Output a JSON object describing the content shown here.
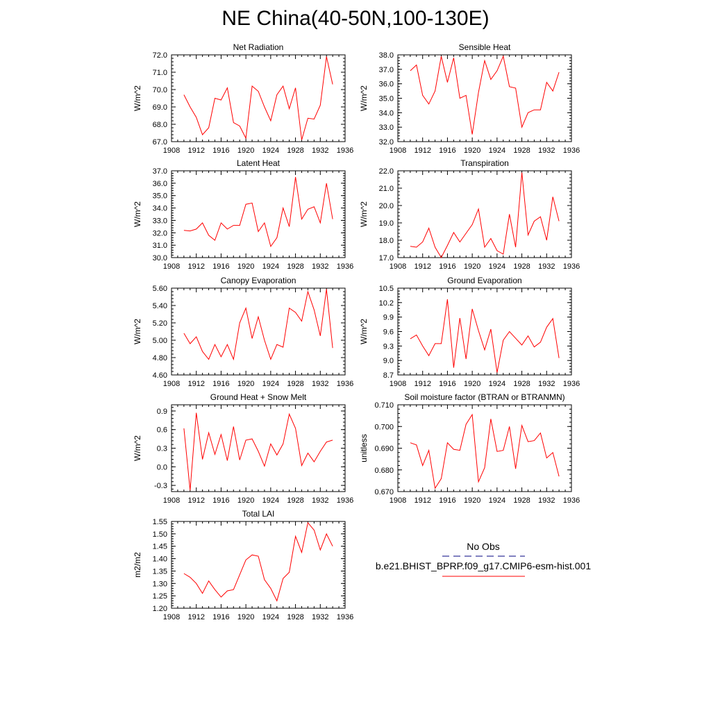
{
  "page": {
    "title": "NE China(40-50N,100-130E)"
  },
  "legend": {
    "obs_label": "No Obs",
    "model_label": "b.e21.BHIST_BPRP.f09_g17.CMIP6-esm-hist.001",
    "obs_color": "#000080",
    "model_color": "#ff0000"
  },
  "chart_data": [
    {
      "type": "line",
      "title": "Net Radiation",
      "xlabel": "",
      "ylabel": "W/m^2",
      "xlim": [
        1908,
        1936
      ],
      "ylim": [
        67.0,
        72.0
      ],
      "x_ticks": [
        1908,
        1912,
        1916,
        1920,
        1924,
        1928,
        1932,
        1936
      ],
      "y_ticks": [
        "67.0",
        "68.0",
        "69.0",
        "70.0",
        "71.0",
        "72.0"
      ],
      "series": [
        {
          "color": "#ff0000",
          "x": [
            1910,
            1911,
            1912,
            1913,
            1914,
            1915,
            1916,
            1917,
            1918,
            1919,
            1920,
            1921,
            1922,
            1923,
            1924,
            1925,
            1926,
            1927,
            1928,
            1929,
            1930,
            1931,
            1932,
            1933,
            1934
          ],
          "values": [
            69.7,
            69.0,
            68.4,
            67.4,
            67.8,
            69.5,
            69.4,
            70.1,
            68.1,
            67.9,
            67.2,
            70.2,
            69.9,
            69.0,
            68.2,
            69.7,
            70.2,
            68.9,
            70.1,
            67.1,
            68.35,
            68.3,
            69.1,
            71.9,
            70.3
          ]
        }
      ]
    },
    {
      "type": "line",
      "title": "Sensible Heat",
      "xlabel": "",
      "ylabel": "W/m^2",
      "xlim": [
        1908,
        1936
      ],
      "ylim": [
        32.0,
        38.0
      ],
      "x_ticks": [
        1908,
        1912,
        1916,
        1920,
        1924,
        1928,
        1932,
        1936
      ],
      "y_ticks": [
        "32.0",
        "33.0",
        "34.0",
        "35.0",
        "36.0",
        "37.0",
        "38.0"
      ],
      "series": [
        {
          "color": "#ff0000",
          "x": [
            1910,
            1911,
            1912,
            1913,
            1914,
            1915,
            1916,
            1917,
            1918,
            1919,
            1920,
            1921,
            1922,
            1923,
            1924,
            1925,
            1926,
            1927,
            1928,
            1929,
            1930,
            1931,
            1932,
            1933,
            1934
          ],
          "values": [
            36.9,
            37.3,
            35.2,
            34.6,
            35.5,
            37.9,
            36.1,
            37.8,
            35.0,
            35.2,
            32.5,
            35.4,
            37.6,
            36.3,
            36.9,
            37.9,
            35.8,
            35.7,
            33.0,
            34.0,
            34.2,
            34.2,
            36.1,
            35.5,
            36.8
          ]
        }
      ]
    },
    {
      "type": "line",
      "title": "Latent Heat",
      "xlabel": "",
      "ylabel": "W/m^2",
      "xlim": [
        1908,
        1936
      ],
      "ylim": [
        30.0,
        37.0
      ],
      "x_ticks": [
        1908,
        1912,
        1916,
        1920,
        1924,
        1928,
        1932,
        1936
      ],
      "y_ticks": [
        "30.0",
        "31.0",
        "32.0",
        "33.0",
        "34.0",
        "35.0",
        "36.0",
        "37.0"
      ],
      "series": [
        {
          "color": "#ff0000",
          "x": [
            1910,
            1911,
            1912,
            1913,
            1914,
            1915,
            1916,
            1917,
            1918,
            1919,
            1920,
            1921,
            1922,
            1923,
            1924,
            1925,
            1926,
            1927,
            1928,
            1929,
            1930,
            1931,
            1932,
            1933,
            1934
          ],
          "values": [
            32.2,
            32.15,
            32.3,
            32.8,
            31.8,
            31.4,
            32.8,
            32.3,
            32.6,
            32.6,
            34.3,
            34.4,
            32.1,
            32.8,
            30.9,
            31.6,
            34.0,
            32.5,
            36.5,
            33.1,
            33.9,
            34.1,
            32.8,
            36.0,
            33.1
          ]
        }
      ]
    },
    {
      "type": "line",
      "title": "Transpiration",
      "xlabel": "",
      "ylabel": "W/m^2",
      "xlim": [
        1908,
        1936
      ],
      "ylim": [
        17.0,
        22.0
      ],
      "x_ticks": [
        1908,
        1912,
        1916,
        1920,
        1924,
        1928,
        1932,
        1936
      ],
      "y_ticks": [
        "17.0",
        "18.0",
        "19.0",
        "20.0",
        "21.0",
        "22.0"
      ],
      "series": [
        {
          "color": "#ff0000",
          "x": [
            1910,
            1911,
            1912,
            1913,
            1914,
            1915,
            1916,
            1917,
            1918,
            1919,
            1920,
            1921,
            1922,
            1923,
            1924,
            1925,
            1926,
            1927,
            1928,
            1929,
            1930,
            1931,
            1932,
            1933,
            1934
          ],
          "values": [
            17.65,
            17.6,
            17.9,
            18.7,
            17.6,
            17.0,
            17.7,
            18.45,
            17.9,
            18.4,
            18.9,
            19.8,
            17.6,
            18.1,
            17.4,
            17.2,
            19.5,
            17.6,
            21.9,
            18.3,
            19.1,
            19.35,
            18.0,
            20.5,
            19.1
          ]
        }
      ]
    },
    {
      "type": "line",
      "title": "Canopy Evaporation",
      "xlabel": "",
      "ylabel": "W/m^2",
      "xlim": [
        1908,
        1936
      ],
      "ylim": [
        4.6,
        5.6
      ],
      "x_ticks": [
        1908,
        1912,
        1916,
        1920,
        1924,
        1928,
        1932,
        1936
      ],
      "y_ticks": [
        "4.60",
        "4.80",
        "5.00",
        "5.20",
        "5.40",
        "5.60"
      ],
      "series": [
        {
          "color": "#ff0000",
          "x": [
            1910,
            1911,
            1912,
            1913,
            1914,
            1915,
            1916,
            1917,
            1918,
            1919,
            1920,
            1921,
            1922,
            1923,
            1924,
            1925,
            1926,
            1927,
            1928,
            1929,
            1930,
            1931,
            1932,
            1933,
            1934
          ],
          "values": [
            5.08,
            4.96,
            5.04,
            4.87,
            4.78,
            4.95,
            4.81,
            4.95,
            4.78,
            5.2,
            5.37,
            5.02,
            5.27,
            5.0,
            4.78,
            4.95,
            4.92,
            5.37,
            5.32,
            5.22,
            5.56,
            5.35,
            5.05,
            5.59,
            4.91
          ]
        }
      ]
    },
    {
      "type": "line",
      "title": "Ground Evaporation",
      "xlabel": "",
      "ylabel": "W/m^2",
      "xlim": [
        1908,
        1936
      ],
      "ylim": [
        8.7,
        10.5
      ],
      "x_ticks": [
        1908,
        1912,
        1916,
        1920,
        1924,
        1928,
        1932,
        1936
      ],
      "y_ticks": [
        "8.7",
        "9.0",
        "9.3",
        "9.6",
        "9.9",
        "10.2",
        "10.5"
      ],
      "series": [
        {
          "color": "#ff0000",
          "x": [
            1910,
            1911,
            1912,
            1913,
            1914,
            1915,
            1916,
            1917,
            1918,
            1919,
            1920,
            1921,
            1922,
            1923,
            1924,
            1925,
            1926,
            1927,
            1928,
            1929,
            1930,
            1931,
            1932,
            1933,
            1934
          ],
          "values": [
            9.45,
            9.53,
            9.3,
            9.1,
            9.35,
            9.35,
            10.27,
            8.85,
            9.88,
            9.03,
            10.07,
            9.62,
            9.22,
            9.65,
            8.75,
            9.42,
            9.6,
            9.46,
            9.32,
            9.51,
            9.28,
            9.38,
            9.69,
            9.87,
            9.05
          ]
        }
      ]
    },
    {
      "type": "line",
      "title": "Ground Heat + Snow Melt",
      "xlabel": "",
      "ylabel": "W/m^2",
      "xlim": [
        1908,
        1936
      ],
      "ylim": [
        -0.4,
        1.0
      ],
      "x_ticks": [
        1908,
        1912,
        1916,
        1920,
        1924,
        1928,
        1932,
        1936
      ],
      "y_ticks": [
        "-0.3",
        "0.0",
        "0.3",
        "0.6",
        "0.9"
      ],
      "series": [
        {
          "color": "#ff0000",
          "x": [
            1910,
            1911,
            1912,
            1913,
            1914,
            1915,
            1916,
            1917,
            1918,
            1919,
            1920,
            1921,
            1922,
            1923,
            1924,
            1925,
            1926,
            1927,
            1928,
            1929,
            1930,
            1931,
            1932,
            1933,
            1934
          ],
          "values": [
            0.62,
            -0.38,
            0.87,
            0.12,
            0.55,
            0.2,
            0.52,
            0.1,
            0.65,
            0.11,
            0.43,
            0.45,
            0.25,
            0.01,
            0.37,
            0.19,
            0.37,
            0.85,
            0.62,
            0.02,
            0.22,
            0.08,
            0.25,
            0.4,
            0.43
          ]
        }
      ]
    },
    {
      "type": "line",
      "title": "Soil moisture factor (BTRAN or BTRANMN)",
      "xlabel": "",
      "ylabel": "unitless",
      "xlim": [
        1908,
        1936
      ],
      "ylim": [
        0.67,
        0.71
      ],
      "x_ticks": [
        1908,
        1912,
        1916,
        1920,
        1924,
        1928,
        1932,
        1936
      ],
      "y_ticks": [
        "0.670",
        "0.680",
        "0.690",
        "0.700",
        "0.710"
      ],
      "series": [
        {
          "color": "#ff0000",
          "x": [
            1910,
            1911,
            1912,
            1913,
            1914,
            1915,
            1916,
            1917,
            1918,
            1919,
            1920,
            1921,
            1922,
            1923,
            1924,
            1925,
            1926,
            1927,
            1928,
            1929,
            1930,
            1931,
            1932,
            1933,
            1934
          ],
          "values": [
            0.6925,
            0.6915,
            0.682,
            0.689,
            0.6715,
            0.676,
            0.6925,
            0.6895,
            0.689,
            0.701,
            0.7055,
            0.6745,
            0.681,
            0.7035,
            0.6885,
            0.689,
            0.7,
            0.6805,
            0.7005,
            0.693,
            0.6935,
            0.697,
            0.6855,
            0.688,
            0.677
          ]
        }
      ]
    },
    {
      "type": "line",
      "title": "Total LAI",
      "xlabel": "",
      "ylabel": "m2/m2",
      "xlim": [
        1908,
        1936
      ],
      "ylim": [
        1.2,
        1.55
      ],
      "x_ticks": [
        1908,
        1912,
        1916,
        1920,
        1924,
        1928,
        1932,
        1936
      ],
      "y_ticks": [
        "1.20",
        "1.25",
        "1.30",
        "1.35",
        "1.40",
        "1.45",
        "1.50",
        "1.55"
      ],
      "series": [
        {
          "color": "#ff0000",
          "x": [
            1910,
            1911,
            1912,
            1913,
            1914,
            1915,
            1916,
            1917,
            1918,
            1919,
            1920,
            1921,
            1922,
            1923,
            1924,
            1925,
            1926,
            1927,
            1928,
            1929,
            1930,
            1931,
            1932,
            1933,
            1934
          ],
          "values": [
            1.34,
            1.325,
            1.3,
            1.26,
            1.31,
            1.275,
            1.245,
            1.27,
            1.275,
            1.335,
            1.395,
            1.415,
            1.41,
            1.315,
            1.28,
            1.23,
            1.32,
            1.345,
            1.49,
            1.425,
            1.545,
            1.515,
            1.435,
            1.5,
            1.45
          ]
        }
      ]
    }
  ]
}
